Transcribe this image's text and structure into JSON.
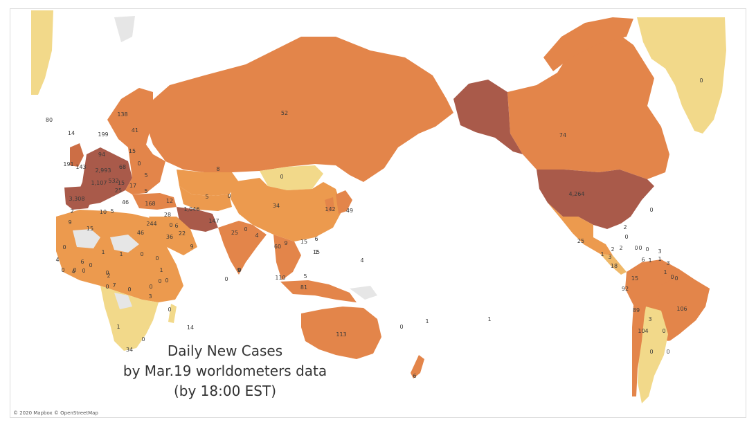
{
  "caption": {
    "line1": "Daily New Cases",
    "line2": "by Mar.19 worldometers data",
    "line3": "(by 18:00 EST)"
  },
  "attribution": "© 2020 Mapbox © OpenStreetMap",
  "colors": {
    "background": "#ffffff",
    "ocean": "#ffffff",
    "no_data": "#e6e6e6",
    "scale": [
      "#f2d98a",
      "#efb868",
      "#ec9a4e",
      "#e3854a",
      "#cc6e45",
      "#a95a4a"
    ]
  },
  "regions": [
    {
      "name": "Greenland",
      "value": "0",
      "level": 0
    },
    {
      "name": "Canada",
      "value": "74",
      "level": 3
    },
    {
      "name": "Alaska",
      "value": "",
      "level": 5
    },
    {
      "name": "United States",
      "value": "4,264",
      "level": 5
    },
    {
      "name": "Russia",
      "value": "52",
      "level": 3
    },
    {
      "name": "China",
      "value": "34",
      "level": 3
    },
    {
      "name": "Mongolia",
      "value": "0",
      "level": 0
    },
    {
      "name": "Kazakhstan",
      "value": "8",
      "level": 2
    },
    {
      "name": "Iran",
      "value": "1,046",
      "level": 5
    },
    {
      "name": "Brazil",
      "value": "106",
      "level": 3
    },
    {
      "name": "Australia",
      "value": "113",
      "level": 3
    },
    {
      "name": "Spain",
      "value": "3,308",
      "level": 5
    },
    {
      "name": "France",
      "value": "1,107",
      "level": 5
    },
    {
      "name": "Germany",
      "value": "2,993",
      "level": 5
    },
    {
      "name": "Italy",
      "value": "",
      "level": 5
    }
  ],
  "labels": [
    {
      "t": "0"
    },
    {
      "t": "74"
    },
    {
      "t": "4,264"
    },
    {
      "t": "52"
    },
    {
      "t": "0"
    },
    {
      "t": "8"
    },
    {
      "t": "34"
    },
    {
      "t": "1,046"
    },
    {
      "t": "147"
    },
    {
      "t": "25"
    },
    {
      "t": "4"
    },
    {
      "t": "0"
    },
    {
      "t": "60"
    },
    {
      "t": "15"
    },
    {
      "t": "9"
    },
    {
      "t": "15"
    },
    {
      "t": "110"
    },
    {
      "t": "81"
    },
    {
      "t": "5"
    },
    {
      "t": "4"
    },
    {
      "t": "113"
    },
    {
      "t": "6"
    },
    {
      "t": "0"
    },
    {
      "t": "1"
    },
    {
      "t": "1"
    },
    {
      "t": "0"
    },
    {
      "t": "0"
    },
    {
      "t": "9"
    },
    {
      "t": "142"
    },
    {
      "t": "49"
    },
    {
      "t": "6"
    },
    {
      "t": "80"
    },
    {
      "t": "14"
    },
    {
      "t": "138"
    },
    {
      "t": "41"
    },
    {
      "t": "199"
    },
    {
      "t": "15"
    },
    {
      "t": "94"
    },
    {
      "t": "0"
    },
    {
      "t": "191"
    },
    {
      "t": "143"
    },
    {
      "t": "2,993"
    },
    {
      "t": "68"
    },
    {
      "t": "5"
    },
    {
      "t": "1,107"
    },
    {
      "t": "532"
    },
    {
      "t": "15"
    },
    {
      "t": "17"
    },
    {
      "t": "25"
    },
    {
      "t": "46"
    },
    {
      "t": "3,308"
    },
    {
      "t": "5"
    },
    {
      "t": "168"
    },
    {
      "t": "12"
    },
    {
      "t": "5"
    },
    {
      "t": "0"
    },
    {
      "t": "2"
    },
    {
      "t": "10"
    },
    {
      "t": "5"
    },
    {
      "t": "28"
    },
    {
      "t": "0"
    },
    {
      "t": "244"
    },
    {
      "t": "6"
    },
    {
      "t": "22"
    },
    {
      "t": "36"
    },
    {
      "t": "46"
    },
    {
      "t": "9"
    },
    {
      "t": "15"
    },
    {
      "t": "9"
    },
    {
      "t": "0"
    },
    {
      "t": "1"
    },
    {
      "t": "1"
    },
    {
      "t": "0"
    },
    {
      "t": "6"
    },
    {
      "t": "0"
    },
    {
      "t": "4"
    },
    {
      "t": "0"
    },
    {
      "t": "0"
    },
    {
      "t": "0"
    },
    {
      "t": "4"
    },
    {
      "t": "0"
    },
    {
      "t": "1"
    },
    {
      "t": "0"
    },
    {
      "t": "2"
    },
    {
      "t": "7"
    },
    {
      "t": "0"
    },
    {
      "t": "0"
    },
    {
      "t": "0"
    },
    {
      "t": "3"
    },
    {
      "t": "0"
    },
    {
      "t": "0"
    },
    {
      "t": "0"
    },
    {
      "t": "1"
    },
    {
      "t": "14"
    },
    {
      "t": "0"
    },
    {
      "t": "34"
    },
    {
      "t": "0"
    },
    {
      "t": "2"
    },
    {
      "t": "25"
    },
    {
      "t": "1"
    },
    {
      "t": "3"
    },
    {
      "t": "2"
    },
    {
      "t": "0"
    },
    {
      "t": "0"
    },
    {
      "t": "0"
    },
    {
      "t": "1"
    },
    {
      "t": "3"
    },
    {
      "t": "18"
    },
    {
      "t": "1"
    },
    {
      "t": "3"
    },
    {
      "t": "6"
    },
    {
      "t": "1"
    },
    {
      "t": "0"
    },
    {
      "t": "0"
    },
    {
      "t": "15"
    },
    {
      "t": "92"
    },
    {
      "t": "89"
    },
    {
      "t": "106"
    },
    {
      "t": "3"
    },
    {
      "t": "104"
    },
    {
      "t": "0"
    },
    {
      "t": "0"
    },
    {
      "t": "0"
    },
    {
      "t": "0"
    },
    {
      "t": "2"
    },
    {
      "t": "1"
    },
    {
      "t": "6"
    }
  ]
}
